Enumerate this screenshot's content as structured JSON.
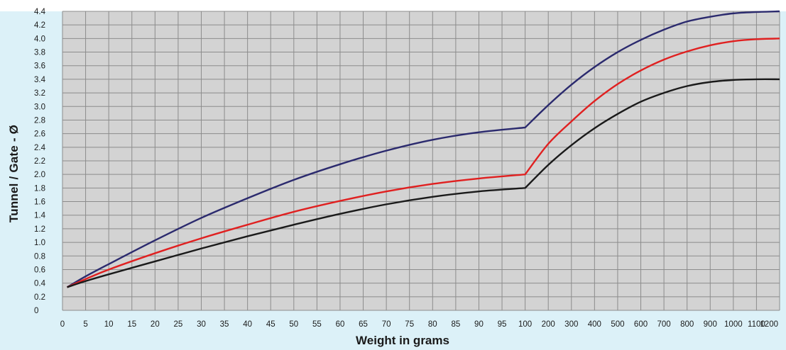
{
  "chart_data": {
    "type": "line",
    "title": "",
    "xlabel": "Weight in grams",
    "ylabel": "Tunnel / Gate - Ø",
    "x_ticks": [
      "0",
      "5",
      "10",
      "15",
      "20",
      "25",
      "30",
      "35",
      "40",
      "45",
      "50",
      "55",
      "60",
      "65",
      "70",
      "75",
      "80",
      "85",
      "90",
      "95",
      "100",
      "200",
      "300",
      "400",
      "500",
      "600",
      "700",
      "800",
      "900",
      "1000",
      "1100",
      "1200"
    ],
    "y_ticks": [
      "0",
      "0.2",
      "0.4",
      "0.6",
      "0.8",
      "1.0",
      "1.2",
      "1.4",
      "1.6",
      "1.8",
      "2.0",
      "2.2",
      "2.4",
      "2.6",
      "2.8",
      "3.0",
      "3.2",
      "3.4",
      "3.6",
      "3.8",
      "4.0",
      "4.2",
      "4.4"
    ],
    "ylim": [
      0,
      4.4
    ],
    "grid": true,
    "colors": {
      "plot_bg": "#d3d3d3",
      "grid": "#8c8c8c",
      "frame_bg": "#dcf1f8",
      "series_blue": "#2b2a6e",
      "series_red": "#e02020",
      "series_black": "#1a1a1a"
    },
    "series": [
      {
        "color": "#2b2a6e",
        "x": [
          1,
          5,
          10,
          20,
          30,
          40,
          50,
          60,
          70,
          80,
          90,
          100,
          200,
          300,
          400,
          500,
          600,
          700,
          800,
          900,
          1000,
          1100,
          1200
        ],
        "values": [
          0.34,
          0.5,
          0.68,
          1.03,
          1.36,
          1.65,
          1.92,
          2.15,
          2.35,
          2.51,
          2.62,
          2.69,
          3.02,
          3.32,
          3.58,
          3.8,
          3.98,
          4.13,
          4.25,
          4.32,
          4.37,
          4.39,
          4.4
        ]
      },
      {
        "color": "#e02020",
        "x": [
          1,
          5,
          10,
          20,
          30,
          40,
          50,
          60,
          70,
          80,
          90,
          100,
          200,
          300,
          400,
          500,
          600,
          700,
          800,
          900,
          1000,
          1100,
          1200
        ],
        "values": [
          0.34,
          0.46,
          0.6,
          0.84,
          1.06,
          1.26,
          1.45,
          1.61,
          1.75,
          1.86,
          1.94,
          2.0,
          2.45,
          2.78,
          3.08,
          3.33,
          3.53,
          3.69,
          3.81,
          3.9,
          3.96,
          3.99,
          4.0
        ]
      },
      {
        "color": "#1a1a1a",
        "x": [
          1,
          5,
          10,
          20,
          30,
          40,
          50,
          60,
          70,
          80,
          90,
          100,
          200,
          300,
          400,
          500,
          600,
          700,
          800,
          900,
          1000,
          1100,
          1200
        ],
        "values": [
          0.34,
          0.43,
          0.53,
          0.72,
          0.91,
          1.09,
          1.26,
          1.42,
          1.56,
          1.67,
          1.75,
          1.8,
          2.14,
          2.43,
          2.68,
          2.89,
          3.07,
          3.2,
          3.3,
          3.36,
          3.39,
          3.4,
          3.4
        ]
      }
    ]
  }
}
